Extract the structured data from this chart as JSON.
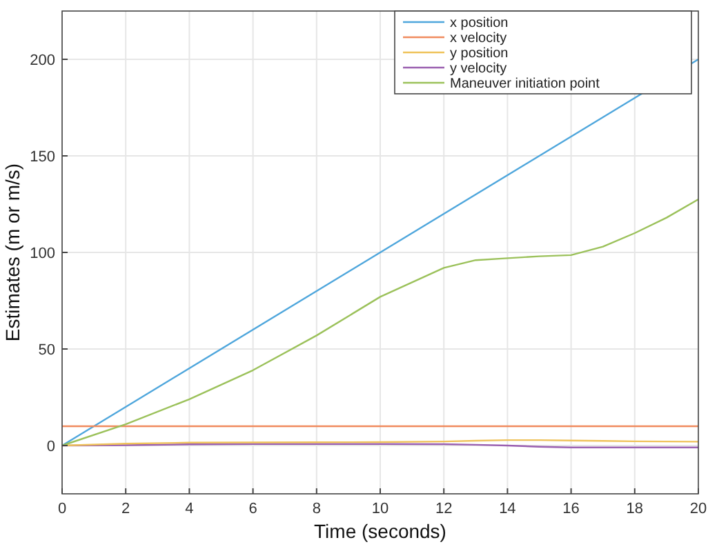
{
  "chart_data": {
    "type": "line",
    "xlabel": "Time (seconds)",
    "ylabel": "Estimates (m or m/s)",
    "x": [
      0,
      2,
      4,
      6,
      8,
      10,
      12,
      13,
      14,
      15,
      16,
      17,
      18,
      19,
      20
    ],
    "xlim": [
      0,
      20
    ],
    "ylim": [
      -25,
      225
    ],
    "xticks": [
      0,
      2,
      4,
      6,
      8,
      10,
      12,
      14,
      16,
      18,
      20
    ],
    "yticks": [
      0,
      50,
      100,
      150,
      200
    ],
    "grid": true,
    "legend": "top right",
    "line_style": "solid",
    "marker": "none",
    "series": [
      {
        "name": "x position",
        "color": "#4ea6dc",
        "x": [
          0,
          10,
          18,
          20
        ],
        "values": [
          0,
          100,
          180,
          200
        ]
      },
      {
        "name": "x velocity",
        "color": "#f08a5d",
        "values": [
          10,
          10,
          10,
          10,
          10,
          10,
          10,
          10,
          10,
          10,
          10,
          10,
          10,
          10,
          10
        ]
      },
      {
        "name": "y position",
        "color": "#efc25a",
        "values": [
          0,
          1,
          1.5,
          1.6,
          1.7,
          1.8,
          2.1,
          2.5,
          2.8,
          2.8,
          2.6,
          2.4,
          2.2,
          2.1,
          2
        ]
      },
      {
        "name": "y velocity",
        "color": "#9a5fb0",
        "values": [
          0,
          0.2,
          0.6,
          0.8,
          0.8,
          0.8,
          0.7,
          0.4,
          0,
          -0.6,
          -1,
          -1,
          -1,
          -1,
          -1
        ]
      },
      {
        "name": "Maneuver initiation point",
        "color": "#9bc15a",
        "values": [
          0,
          11,
          24,
          39,
          57,
          77,
          92,
          96,
          97,
          98,
          98.6,
          103,
          110,
          118,
          127.5
        ]
      }
    ]
  }
}
